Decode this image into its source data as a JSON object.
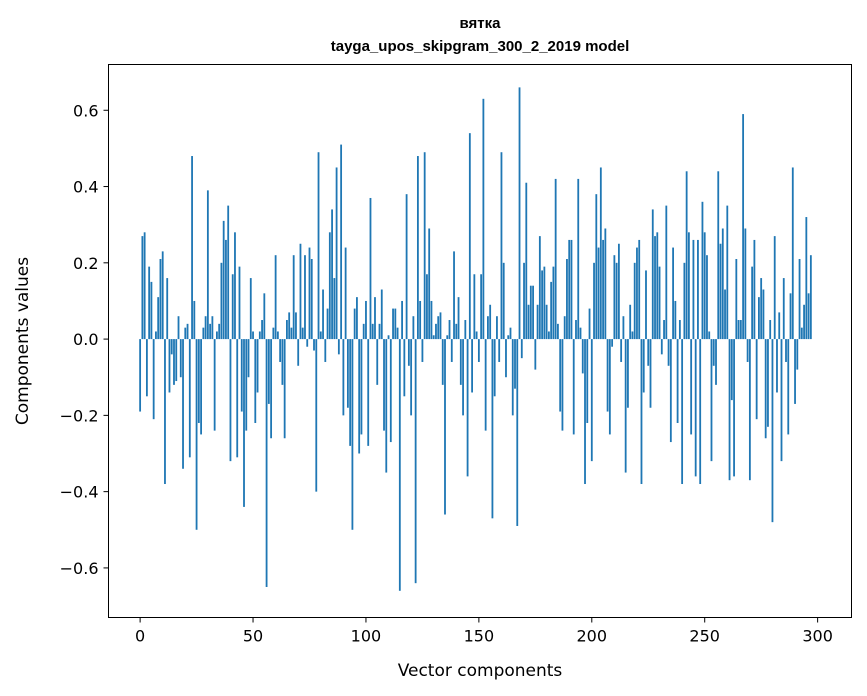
{
  "chart_data": {
    "type": "bar",
    "title": "вятка",
    "subtitle": "tayga_upos_skipgram_300_2_2019 model",
    "xlabel": "Vector components",
    "ylabel": "Components values",
    "xlim": [
      -14,
      315
    ],
    "ylim": [
      -0.73,
      0.72
    ],
    "xticks": [
      0,
      50,
      100,
      150,
      200,
      250,
      300
    ],
    "yticks": [
      -0.6,
      -0.4,
      -0.2,
      0.0,
      0.2,
      0.4,
      0.6
    ],
    "ytick_labels": [
      "−0.6",
      "−0.4",
      "−0.2",
      "0.0",
      "0.2",
      "0.4",
      "0.6"
    ],
    "xtick_labels": [
      "0",
      "50",
      "100",
      "150",
      "200",
      "250",
      "300"
    ],
    "bar_color": "#1f77b4",
    "x_start": 0,
    "values": [
      -0.19,
      0.27,
      0.28,
      -0.15,
      0.19,
      0.15,
      -0.21,
      0.02,
      0.11,
      0.21,
      0.23,
      -0.38,
      0.16,
      -0.14,
      -0.04,
      -0.12,
      -0.11,
      0.06,
      -0.1,
      -0.34,
      0.03,
      0.04,
      -0.31,
      0.48,
      0.1,
      -0.5,
      -0.22,
      -0.25,
      0.03,
      0.06,
      0.39,
      0.04,
      0.06,
      -0.24,
      0.02,
      0.04,
      0.2,
      0.31,
      0.26,
      0.35,
      -0.32,
      0.17,
      0.28,
      -0.31,
      0.19,
      -0.19,
      -0.44,
      -0.24,
      -0.1,
      0.16,
      0.02,
      -0.22,
      -0.14,
      0.02,
      0.05,
      0.12,
      -0.65,
      -0.17,
      -0.26,
      0.03,
      0.22,
      0.02,
      -0.06,
      -0.12,
      -0.26,
      0.05,
      0.07,
      0.03,
      0.22,
      0.07,
      -0.07,
      0.25,
      0.03,
      0.22,
      -0.02,
      0.24,
      0.21,
      -0.03,
      -0.4,
      0.49,
      0.02,
      0.13,
      -0.06,
      0.08,
      0.28,
      0.34,
      0.16,
      0.45,
      -0.04,
      0.51,
      -0.2,
      0.24,
      -0.18,
      -0.28,
      -0.5,
      0.08,
      0.11,
      -0.3,
      -0.25,
      0.04,
      0.1,
      -0.28,
      0.37,
      0.04,
      0.11,
      -0.12,
      0.04,
      0.13,
      -0.24,
      -0.35,
      0.01,
      -0.27,
      0.08,
      0.08,
      0.03,
      -0.66,
      0.1,
      -0.15,
      0.38,
      -0.07,
      -0.2,
      0.06,
      -0.64,
      0.48,
      0.1,
      -0.06,
      0.49,
      0.17,
      0.29,
      0.1,
      0.01,
      0.04,
      0.06,
      0.07,
      -0.12,
      -0.46,
      0.01,
      0.05,
      -0.06,
      0.23,
      0.04,
      0.11,
      -0.12,
      -0.2,
      0.05,
      -0.36,
      0.54,
      -0.14,
      0.17,
      0.02,
      -0.06,
      0.17,
      0.63,
      -0.24,
      0.06,
      0.09,
      -0.47,
      -0.15,
      0.06,
      -0.06,
      0.49,
      0.2,
      -0.1,
      0.01,
      0.03,
      -0.2,
      -0.13,
      -0.49,
      0.66,
      -0.05,
      0.2,
      0.41,
      0.09,
      0.14,
      0.14,
      -0.08,
      0.09,
      0.27,
      0.18,
      0.19,
      0.09,
      0.02,
      0.15,
      0.19,
      0.42,
      0.04,
      -0.19,
      -0.24,
      0.06,
      0.21,
      0.26,
      0.26,
      -0.25,
      0.05,
      0.42,
      0.03,
      -0.09,
      -0.38,
      -0.22,
      0.08,
      -0.32,
      0.2,
      0.38,
      0.24,
      0.45,
      0.26,
      0.29,
      -0.19,
      -0.25,
      -0.02,
      0.22,
      0.2,
      0.25,
      -0.06,
      0.06,
      -0.35,
      -0.18,
      0.09,
      0.02,
      0.2,
      0.24,
      0.26,
      -0.38,
      -0.14,
      0.18,
      -0.07,
      -0.18,
      0.34,
      0.27,
      0.28,
      0.19,
      -0.04,
      0.05,
      0.35,
      -0.07,
      -0.27,
      0.24,
      0.1,
      -0.22,
      0.05,
      -0.38,
      0.2,
      0.44,
      0.28,
      -0.25,
      0.26,
      -0.36,
      0.26,
      -0.38,
      0.36,
      0.28,
      0.22,
      0.02,
      -0.32,
      -0.07,
      -0.12,
      0.44,
      0.25,
      0.29,
      0.13,
      0.35,
      -0.37,
      -0.16,
      -0.36,
      0.21,
      0.05,
      0.05,
      0.59,
      0.29,
      -0.06,
      -0.37,
      0.19,
      0.26,
      -0.21,
      0.11,
      0.16,
      0.13,
      -0.26,
      -0.23,
      0.05,
      -0.48,
      0.27,
      -0.14,
      0.07,
      -0.32,
      0.16,
      -0.06,
      -0.25,
      0.12,
      0.45,
      -0.17,
      -0.08,
      0.21,
      0.03,
      0.09,
      0.32,
      0.12,
      0.22
    ]
  }
}
